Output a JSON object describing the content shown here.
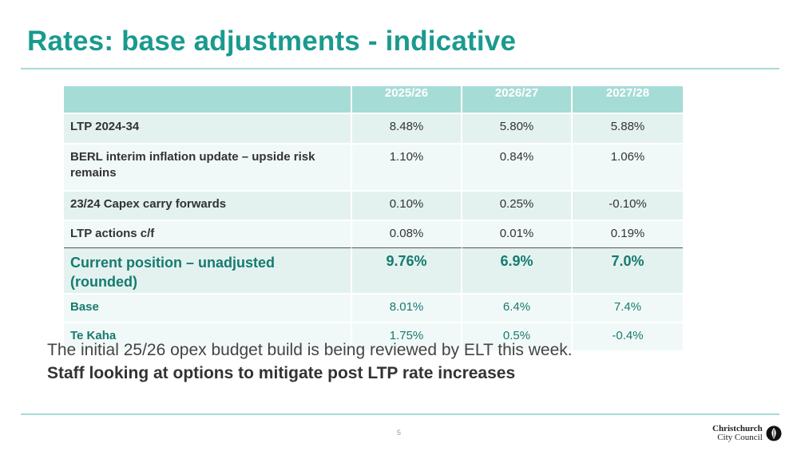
{
  "slide": {
    "title": "Rates: base adjustments - indicative",
    "page_number": "5",
    "colors": {
      "accent": "#1a9a8e",
      "header_fill": "#a6dcd6",
      "row_fill_a": "#e3f2ef",
      "row_fill_b": "#f1f9f8",
      "dark_teal": "#167a6f"
    }
  },
  "table": {
    "headers": [
      "",
      "2025/26",
      "2026/27",
      "2027/28"
    ],
    "rows": [
      {
        "label": "LTP 2024-34",
        "values": [
          "8.48%",
          "5.80%",
          "5.88%"
        ]
      },
      {
        "label": "BERL interim inflation update – upside risk remains",
        "values": [
          "1.10%",
          "0.84%",
          "1.06%"
        ]
      },
      {
        "label": "23/24 Capex carry forwards",
        "values": [
          "0.10%",
          "0.25%",
          "-0.10%"
        ]
      },
      {
        "label": "LTP actions c/f",
        "values": [
          "0.08%",
          "0.01%",
          "0.19%"
        ]
      },
      {
        "label": "Current position – unadjusted (rounded)",
        "values": [
          "9.76%",
          "6.9%",
          "7.0%"
        ]
      },
      {
        "label": "Base",
        "values": [
          "8.01%",
          "6.4%",
          "7.4%"
        ]
      },
      {
        "label": "Te Kaha",
        "values": [
          "1.75%",
          "0.5%",
          "-0.4%"
        ]
      }
    ]
  },
  "notes": {
    "line1": "The initial 25/26 opex budget build is being reviewed by ELT this week.",
    "line2": "Staff looking at options to mitigate post LTP rate increases"
  },
  "logo": {
    "line1": "Christchurch",
    "line2": "City Council",
    "icon": "christchurch-crest-icon"
  }
}
